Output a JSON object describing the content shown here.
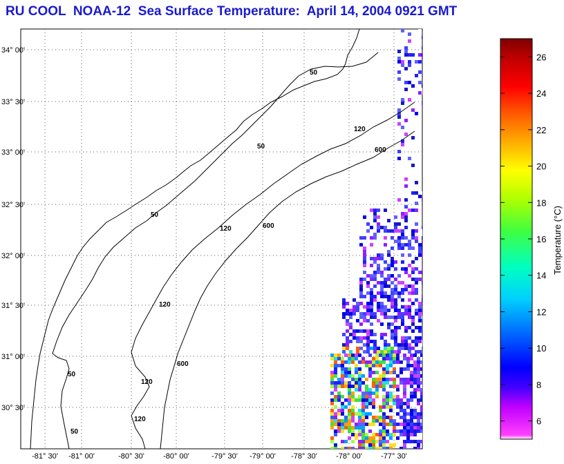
{
  "title": "RU COOL  NOAA-12  Sea Surface Temperature:  April 14, 2004 0921 GMT",
  "map": {
    "lon_labels": [
      "-81° 30'",
      "-81° 00'",
      "-80° 30'",
      "-80° 00'",
      "-79° 30'",
      "-79° 00'",
      "-78° 30'",
      "-78° 00'",
      "-77° 30'"
    ],
    "lat_labels": [
      "34° 00'",
      "33° 30'",
      "33° 00'",
      "32° 30'",
      "32° 00'",
      "31° 30'",
      "31° 00'",
      "30° 30'"
    ],
    "contour_labels": [
      "50",
      "50",
      "50",
      "50",
      "50",
      "120",
      "120",
      "120",
      "120",
      "120",
      "600",
      "600",
      "600"
    ]
  },
  "colorbar": {
    "label": "Temperature (°C)",
    "ticks": [
      "26",
      "24",
      "22",
      "20",
      "18",
      "16",
      "14",
      "12",
      "10",
      "8",
      "6"
    ],
    "range": [
      5,
      27
    ]
  }
}
